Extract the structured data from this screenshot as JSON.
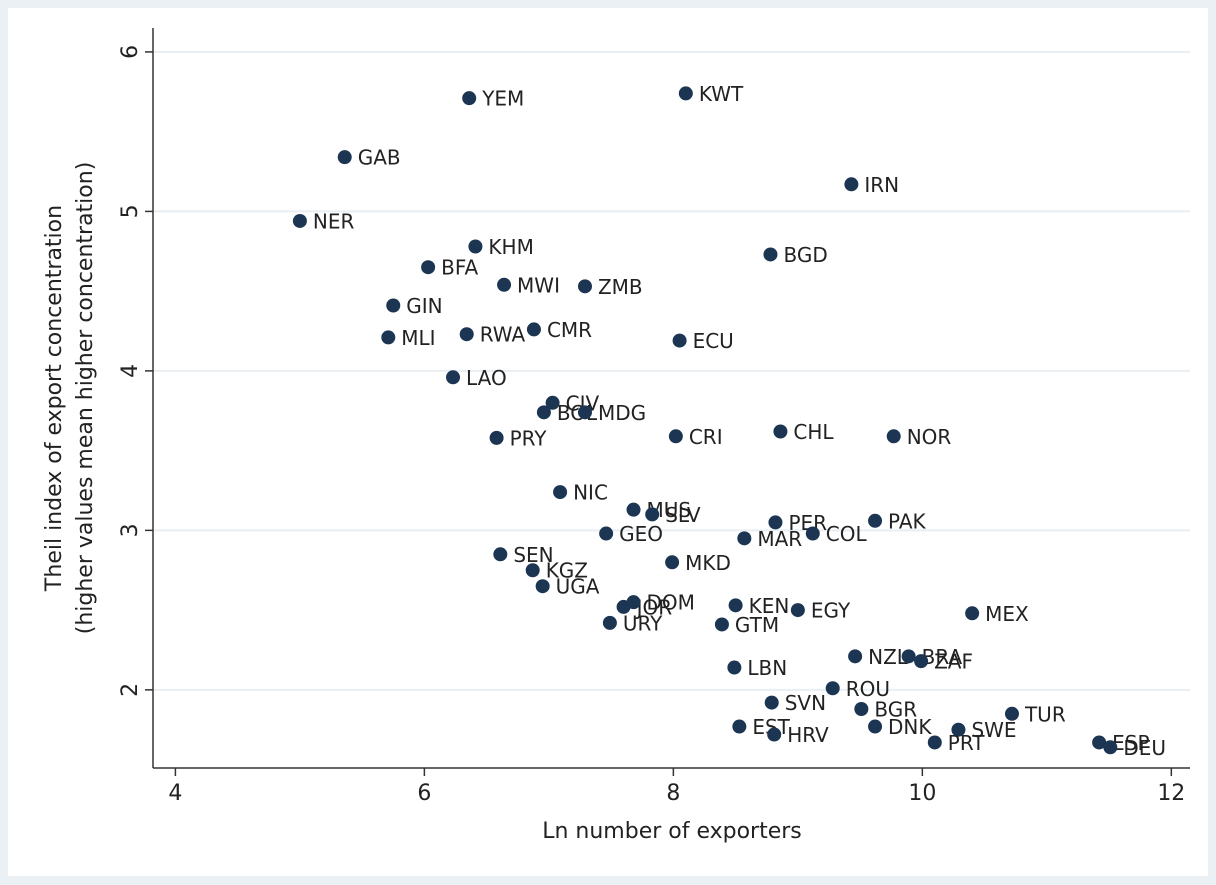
{
  "chart_data": {
    "type": "scatter",
    "xlabel": "Ln number of exporters",
    "ylabel": [
      "Theil index of export concentration",
      "(higher values mean higher concentration)"
    ],
    "labels": [
      "YEM",
      "KWT",
      "GAB",
      "IRN",
      "NER",
      "KHM",
      "BGD",
      "BFA",
      "MWI",
      "ZMB",
      "GIN",
      "MLI",
      "RWA",
      "CMR",
      "ECU",
      "LAO",
      "CIV",
      "BOL",
      "MDG",
      "PRY",
      "CRI",
      "CHL",
      "NOR",
      "NIC",
      "MUS",
      "SLV",
      "PER",
      "PAK",
      "GEO",
      "MAR",
      "COL",
      "SEN",
      "MKD",
      "KGZ",
      "UGA",
      "JOR",
      "DOM",
      "KEN",
      "EGY",
      "MEX",
      "URY",
      "GTM",
      "LBN",
      "NZL",
      "BRA",
      "ZAF",
      "ROU",
      "SVN",
      "BGR",
      "TUR",
      "EST",
      "DNK",
      "SWE",
      "HRV",
      "PRT",
      "ESP",
      "DEU"
    ],
    "x": [
      6.36,
      8.1,
      5.36,
      9.43,
      5.0,
      6.41,
      8.78,
      6.03,
      6.64,
      7.29,
      5.75,
      5.71,
      6.34,
      6.88,
      8.05,
      6.23,
      7.03,
      6.96,
      7.29,
      6.58,
      8.02,
      8.86,
      9.77,
      7.09,
      7.68,
      7.83,
      8.82,
      9.62,
      7.46,
      8.57,
      9.12,
      6.61,
      7.99,
      6.87,
      6.95,
      7.6,
      7.68,
      8.5,
      9.0,
      10.4,
      7.49,
      8.39,
      8.49,
      9.46,
      9.89,
      9.99,
      9.28,
      8.79,
      9.51,
      10.72,
      8.53,
      9.62,
      10.29,
      8.81,
      10.1,
      11.42,
      11.51
    ],
    "values": [
      5.71,
      5.74,
      5.34,
      5.17,
      4.94,
      4.78,
      4.73,
      4.65,
      4.54,
      4.53,
      4.41,
      4.21,
      4.23,
      4.26,
      4.19,
      3.96,
      3.8,
      3.74,
      3.74,
      3.58,
      3.59,
      3.62,
      3.59,
      3.24,
      3.13,
      3.1,
      3.05,
      3.06,
      2.98,
      2.95,
      2.98,
      2.85,
      2.8,
      2.75,
      2.65,
      2.52,
      2.55,
      2.53,
      2.5,
      2.48,
      2.42,
      2.41,
      2.14,
      2.21,
      2.21,
      2.18,
      2.01,
      1.92,
      1.88,
      1.85,
      1.77,
      1.77,
      1.75,
      1.72,
      1.67,
      1.67,
      1.64
    ],
    "color": "#1b3552",
    "xlim": [
      3.82,
      12.15
    ],
    "ylim": [
      1.51,
      6.15
    ],
    "xticks": [
      4,
      6,
      8,
      10,
      12
    ],
    "yticks": [
      2,
      3,
      4,
      5,
      6
    ],
    "grid": true
  }
}
